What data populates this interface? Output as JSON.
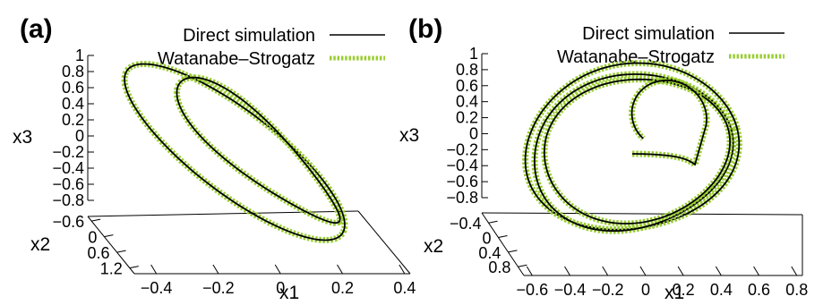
{
  "colors": {
    "direct": "#000000",
    "ws": "#9acd32",
    "axis": "#000000"
  },
  "legend": {
    "direct": "Direct simulation",
    "ws": "Watanabe–Strogatz"
  },
  "chart_data": [
    {
      "type": "line",
      "panel_label": "(a)",
      "projection": "3d",
      "series": [
        {
          "name": "Direct simulation",
          "style": "solid black"
        },
        {
          "name": "Watanabe–Strogatz",
          "style": "dotted green"
        }
      ],
      "x1_label": "x1",
      "x2_label": "x2",
      "x3_label": "x3",
      "x1_ticks": [
        "−0.4",
        "−0.2",
        "0",
        "0.2",
        "0.4"
      ],
      "x2_ticks": [
        "−0.6",
        "0",
        "0.6",
        "1.2"
      ],
      "x3_ticks": [
        "1",
        "0.8",
        "0.6",
        "0.4",
        "0.2",
        "0",
        "−0.2",
        "−0.4",
        "−0.6",
        "−0.8"
      ],
      "x1_range": [
        -0.5,
        0.4
      ],
      "x2_range": [
        -0.6,
        1.2
      ],
      "x3_range": [
        -0.9,
        1.0
      ]
    },
    {
      "type": "line",
      "panel_label": "(b)",
      "projection": "3d",
      "series": [
        {
          "name": "Direct simulation",
          "style": "solid black"
        },
        {
          "name": "Watanabe–Strogatz",
          "style": "dotted green"
        }
      ],
      "x1_label": "x1",
      "x2_label": "x2",
      "x3_label": "x3",
      "x1_ticks": [
        "−0.6",
        "−0.4",
        "−0.2",
        "0",
        "0.2",
        "0.4",
        "0.6",
        "0.8"
      ],
      "x2_ticks": [
        "−0.4",
        "0",
        "0.4",
        "0.8"
      ],
      "x3_ticks": [
        "1",
        "0.8",
        "0.6",
        "0.4",
        "0.2",
        "0",
        "−0.2",
        "−0.4",
        "−0.6",
        "−0.8"
      ],
      "x1_range": [
        -0.7,
        0.8
      ],
      "x2_range": [
        -0.4,
        0.8
      ],
      "x3_range": [
        -0.9,
        1.0
      ]
    }
  ]
}
